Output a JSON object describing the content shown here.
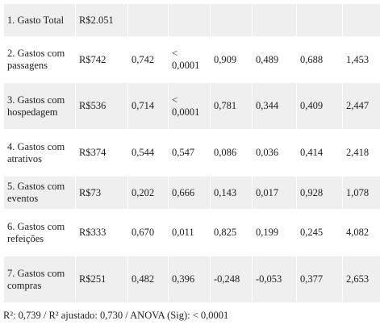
{
  "rows": [
    [
      "1. Gasto Total",
      "R$2.051",
      "",
      "",
      "",
      "",
      "",
      ""
    ],
    [
      "2. Gastos com passagens",
      "R$742",
      "0,742",
      "< 0,0001",
      "0,909",
      "0,489",
      "0,688",
      "1,453"
    ],
    [
      "3. Gastos com hospedagem",
      "R$536",
      "0,714",
      "< 0,0001",
      "0,781",
      "0,344",
      "0,409",
      "2,447"
    ],
    [
      "4. Gastos com atrativos",
      "R$374",
      "0,544",
      "0,547",
      "0,086",
      "0,036",
      "0,414",
      "2,418"
    ],
    [
      "5. Gastos com eventos",
      "R$73",
      "0,202",
      "0,666",
      "0,143",
      "0,017",
      "0,928",
      "1,078"
    ],
    [
      "6. Gastos com refeições",
      "R$333",
      "0,670",
      "0,011",
      "0,825",
      "0,199",
      "0,245",
      "4,082"
    ],
    [
      "7. Gastos com compras",
      "R$251",
      "0,482",
      "0,396",
      "-0,248",
      "-0,053",
      "0,377",
      "2,653"
    ]
  ],
  "footnote": "R²: 0,739 / R² ajustado: 0,730 / ANOVA (Sig): < 0,0001"
}
